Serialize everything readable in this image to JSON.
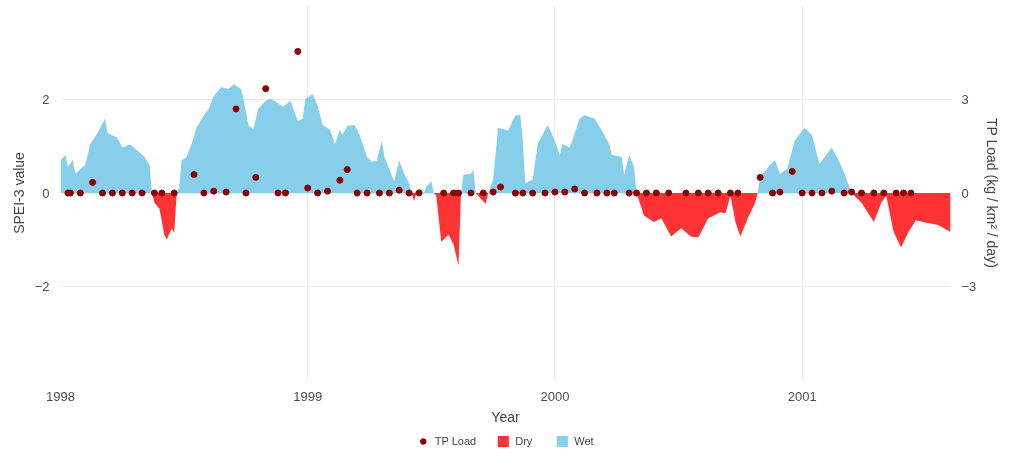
{
  "chart_data": {
    "type": "area",
    "xlabel": "Year",
    "ylabel": "SPEI-3 value",
    "y2label": "TP Load (kg / km² / day)",
    "xlim": [
      1998,
      2001.6
    ],
    "xticks": [
      1998,
      1999,
      2000,
      2001
    ],
    "ylim": [
      -4,
      4
    ],
    "yticks": [
      -2,
      0,
      2
    ],
    "y2lim": [
      -6,
      6
    ],
    "y2ticks": [
      -3,
      0,
      3
    ],
    "grid": true,
    "legend": "bottom",
    "series": [
      {
        "name": "TP Load",
        "type": "scatter",
        "axis": "y2",
        "color": "#8b0000",
        "marker": "circle",
        "x": [
          1998.03,
          1998.04,
          1998.08,
          1998.13,
          1998.17,
          1998.21,
          1998.25,
          1998.29,
          1998.33,
          1998.38,
          1998.41,
          1998.46,
          1998.54,
          1998.58,
          1998.62,
          1998.67,
          1998.71,
          1998.75,
          1998.79,
          1998.83,
          1998.88,
          1998.91,
          1998.96,
          1999.0,
          1999.04,
          1999.08,
          1999.13,
          1999.16,
          1999.2,
          1999.24,
          1999.29,
          1999.33,
          1999.37,
          1999.41,
          1999.45,
          1999.55,
          1999.59,
          1999.61,
          1999.66,
          1999.71,
          1999.75,
          1999.78,
          1999.84,
          1999.87,
          1999.91,
          1999.96,
          2000.0,
          2000.04,
          2000.08,
          2000.12,
          2000.17,
          2000.21,
          2000.24,
          2000.3,
          2000.33,
          2000.37,
          2000.41,
          2000.46,
          2000.53,
          2000.58,
          2000.62,
          2000.66,
          2000.71,
          2000.74,
          2000.83,
          2000.88,
          2000.91,
          2000.96,
          2001.0,
          2001.04,
          2001.08,
          2001.12,
          2001.17,
          2001.2,
          2001.24,
          2001.29,
          2001.33,
          2001.38,
          2001.41,
          2001.44
        ],
        "values": [
          0,
          0,
          0,
          0.34,
          0,
          0,
          0,
          0,
          0,
          0,
          0,
          0,
          0.59,
          0,
          0.06,
          0.03,
          2.69,
          0,
          0.5,
          3.34,
          0,
          0,
          4.53,
          0.16,
          0,
          0.06,
          0.41,
          0.75,
          0,
          0,
          0,
          0,
          0.09,
          0,
          0,
          0,
          0,
          0,
          0,
          0,
          0.03,
          0.19,
          0,
          0,
          0,
          0,
          0.03,
          0.03,
          0.13,
          0,
          0,
          0,
          0,
          0,
          0,
          0,
          0,
          0,
          0,
          0,
          0,
          0,
          0,
          0,
          0.5,
          0,
          0.03,
          0.69,
          0,
          0,
          0,
          0.06,
          0,
          0.03,
          0,
          0,
          0,
          0,
          0,
          0
        ]
      },
      {
        "name": "Dry",
        "color": "#ff3333",
        "x": [
          1998.37,
          1998.38,
          1998.4,
          1998.42,
          1998.43,
          1998.45,
          1998.46,
          1998.47,
          1999.42,
          1999.43,
          1999.44,
          1999.51,
          1999.52,
          1999.54,
          1999.57,
          1999.59,
          1999.61,
          1999.62,
          1999.68,
          1999.7,
          1999.72,
          1999.73,
          2000.33,
          2000.36,
          2000.4,
          2000.43,
          2000.47,
          2000.51,
          2000.55,
          2000.58,
          2000.62,
          2000.67,
          2000.69,
          2000.71,
          2000.73,
          2000.75,
          2000.78,
          2000.81,
          2000.82,
          2001.2,
          2001.24,
          2001.29,
          2001.32,
          2001.34,
          2001.37,
          2001.4,
          2001.43,
          2001.46,
          2001.49,
          2001.55,
          2001.6
        ],
        "values": [
          0,
          -0.21,
          -0.33,
          -0.89,
          -0.99,
          -0.75,
          -0.85,
          0,
          0,
          -0.17,
          0,
          0,
          -0.06,
          -1.04,
          -0.89,
          -1.1,
          -1.55,
          0,
          0,
          -0.12,
          -0.23,
          0,
          0,
          -0.48,
          -0.62,
          -0.54,
          -0.93,
          -0.75,
          -0.93,
          -0.95,
          -0.54,
          -0.41,
          -0.43,
          -0.06,
          -0.62,
          -0.93,
          -0.54,
          -0.21,
          0,
          0,
          -0.21,
          -0.62,
          -0.21,
          -0.06,
          -0.83,
          -1.16,
          -0.83,
          -0.58,
          -0.62,
          -0.68,
          -0.83
        ]
      },
      {
        "name": "Wet",
        "color": "#87ceeb",
        "x": [
          1998.0,
          1998.02,
          1998.03,
          1998.05,
          1998.06,
          1998.1,
          1998.12,
          1998.15,
          1998.18,
          1998.19,
          1998.23,
          1998.25,
          1998.28,
          1998.31,
          1998.34,
          1998.36,
          1998.37,
          1998.47,
          1998.48,
          1998.49,
          1998.51,
          1998.53,
          1998.55,
          1998.58,
          1998.6,
          1998.62,
          1998.65,
          1998.68,
          1998.7,
          1998.73,
          1998.74,
          1998.76,
          1998.78,
          1998.8,
          1998.83,
          1998.85,
          1998.87,
          1998.9,
          1998.93,
          1998.96,
          1998.98,
          1998.99,
          1999.02,
          1999.04,
          1999.06,
          1999.09,
          1999.11,
          1999.13,
          1999.14,
          1999.16,
          1999.19,
          1999.21,
          1999.24,
          1999.26,
          1999.28,
          1999.3,
          1999.31,
          1999.33,
          1999.35,
          1999.37,
          1999.39,
          1999.41,
          1999.42,
          1999.44,
          1999.45,
          1999.46,
          1999.47,
          1999.48,
          1999.5,
          1999.51,
          1999.62,
          1999.63,
          1999.66,
          1999.67,
          1999.68,
          1999.73,
          1999.75,
          1999.77,
          1999.8,
          1999.81,
          1999.84,
          1999.86,
          1999.87,
          1999.88,
          1999.91,
          1999.93,
          1999.97,
          1999.99,
          2000.02,
          2000.03,
          2000.06,
          2000.1,
          2000.12,
          2000.16,
          2000.19,
          2000.22,
          2000.23,
          2000.27,
          2000.28,
          2000.3,
          2000.32,
          2000.33,
          2000.82,
          2000.83,
          2000.87,
          2000.89,
          2000.91,
          2000.94,
          2000.97,
          2001.01,
          2001.04,
          2001.07,
          2001.12,
          2001.16,
          2001.18,
          2001.2
        ],
        "values": [
          0.7,
          0.81,
          0.56,
          0.7,
          0.41,
          0.6,
          1.04,
          1.28,
          1.59,
          1.28,
          1.18,
          0.97,
          1.04,
          0.91,
          0.77,
          0.6,
          0,
          0,
          0.1,
          0.7,
          0.77,
          1.04,
          1.39,
          1.66,
          1.8,
          2.07,
          2.26,
          2.22,
          2.32,
          2.22,
          2.01,
          1.45,
          1.35,
          1.8,
          1.97,
          2.01,
          1.95,
          1.84,
          1.97,
          1.53,
          1.59,
          2.01,
          2.11,
          1.86,
          1.45,
          1.35,
          1.04,
          1.35,
          1.24,
          1.43,
          1.45,
          1.24,
          0.77,
          0.66,
          0.7,
          1.12,
          0.77,
          0.5,
          0.25,
          0.7,
          0.41,
          0.21,
          0,
          0,
          0.1,
          0.08,
          0,
          0.14,
          0.25,
          0,
          0,
          0.39,
          0.41,
          0.5,
          0,
          0,
          0.29,
          1.39,
          1.35,
          1.33,
          1.66,
          1.66,
          1.12,
          0.21,
          0.29,
          1.04,
          1.45,
          1.24,
          0.81,
          1.04,
          0.97,
          1.59,
          1.66,
          1.59,
          1.33,
          1.04,
          0.81,
          0.77,
          0.39,
          0.81,
          0.56,
          0,
          0,
          0.35,
          0.6,
          0.7,
          0.41,
          0.52,
          1.12,
          1.39,
          1.24,
          0.62,
          0.97,
          0.56,
          0.29,
          0
        ]
      }
    ]
  }
}
